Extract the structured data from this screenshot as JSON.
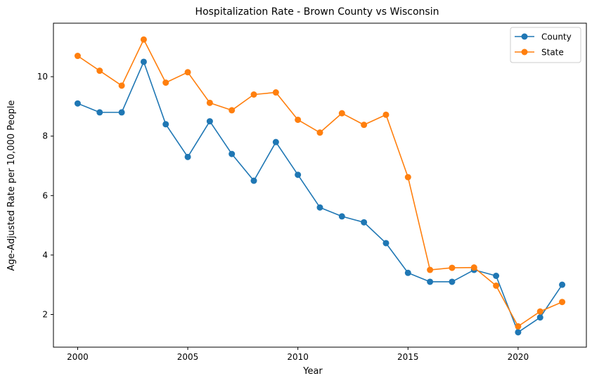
{
  "chart_data": {
    "type": "line",
    "title": "Hospitalization Rate - Brown County vs Wisconsin",
    "xlabel": "Year",
    "ylabel": "Age-Adjusted Rate per 10,000 People",
    "xlim": [
      1998.9,
      2023.1
    ],
    "ylim": [
      0.9,
      11.8
    ],
    "x": [
      2000,
      2001,
      2002,
      2003,
      2004,
      2005,
      2006,
      2007,
      2008,
      2009,
      2010,
      2011,
      2012,
      2013,
      2014,
      2015,
      2016,
      2017,
      2018,
      2019,
      2020,
      2021,
      2022
    ],
    "x_ticks": [
      2000,
      2005,
      2010,
      2015,
      2020
    ],
    "y_ticks": [
      2,
      4,
      6,
      8,
      10
    ],
    "grid": false,
    "legend_position": "top-right",
    "series": [
      {
        "name": "County",
        "color": "#1f77b4",
        "values": [
          9.1,
          8.8,
          8.8,
          10.5,
          8.4,
          7.3,
          8.5,
          7.4,
          6.5,
          7.8,
          6.7,
          5.6,
          5.3,
          5.1,
          4.4,
          3.4,
          3.1,
          3.1,
          3.5,
          3.3,
          1.4,
          1.9,
          3.0
        ]
      },
      {
        "name": "State",
        "color": "#ff7f0e",
        "values": [
          10.7,
          10.2,
          9.7,
          11.25,
          9.8,
          10.15,
          9.12,
          8.87,
          9.4,
          9.47,
          8.55,
          8.12,
          8.77,
          8.38,
          8.72,
          6.62,
          3.5,
          3.57,
          3.58,
          2.97,
          1.6,
          2.1,
          2.42
        ]
      }
    ]
  }
}
